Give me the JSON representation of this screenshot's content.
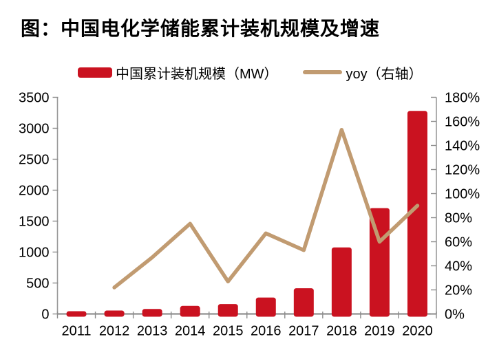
{
  "page": {
    "title": "图：中国电化学储能累计装机规模及增速"
  },
  "legend": {
    "bar_label": "中国累计装机规模（MW）",
    "line_label": "yoy（右轴）"
  },
  "colors": {
    "bar": "#CA1220",
    "line": "#C19B71",
    "axis_vertical": "#999999",
    "axis_bottom": "#808080",
    "tick": "#8C8C8C",
    "text": "#000000"
  },
  "chart_data": {
    "type": "combo",
    "title": "图：中国电化学储能累计装机规模及增速",
    "categories": [
      "2011",
      "2012",
      "2013",
      "2014",
      "2015",
      "2016",
      "2017",
      "2018",
      "2019",
      "2020"
    ],
    "series": [
      {
        "name": "中国累计装机规模（MW）",
        "type": "bar",
        "axis": "left",
        "color": "#CA1220",
        "values": [
          45,
          55,
          80,
          130,
          160,
          265,
          415,
          1075,
          1710,
          3280
        ]
      },
      {
        "name": "yoy（右轴）",
        "type": "line",
        "axis": "right",
        "color": "#C19B71",
        "unit": "%",
        "values": [
          null,
          22,
          47,
          75,
          27,
          67,
          53,
          153,
          60,
          90
        ]
      }
    ],
    "left_axis": {
      "min": 0,
      "max": 3500,
      "step": 500,
      "tick_labels": [
        "0",
        "500",
        "1000",
        "1500",
        "2000",
        "2500",
        "3000",
        "3500"
      ]
    },
    "right_axis": {
      "min": 0,
      "max": 180,
      "step": 20,
      "unit": "%",
      "tick_labels": [
        "0%",
        "20%",
        "40%",
        "60%",
        "80%",
        "100%",
        "120%",
        "140%",
        "160%",
        "180%"
      ]
    },
    "xlabel": "",
    "ylabel": "",
    "grid": false,
    "legend_position": "top"
  }
}
